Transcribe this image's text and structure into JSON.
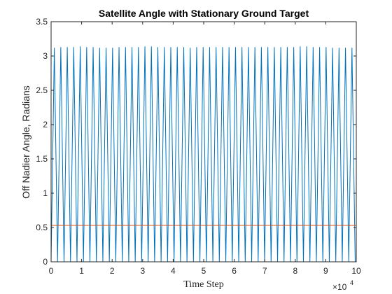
{
  "chart_data": {
    "type": "line",
    "title": "Satellite Angle with Stationary Ground Target",
    "xlabel": "Time Step",
    "ylabel": "Off Nadier Angle, Radians",
    "xlim": [
      0,
      100000
    ],
    "ylim": [
      0,
      3.5
    ],
    "x_ticks": [
      0,
      10000,
      20000,
      30000,
      40000,
      50000,
      60000,
      70000,
      80000,
      90000,
      100000
    ],
    "x_tick_labels": [
      "0",
      "1",
      "2",
      "3",
      "4",
      "5",
      "6",
      "7",
      "8",
      "9",
      "10"
    ],
    "x_exponent": {
      "base": "×10",
      "power": "4"
    },
    "y_ticks": [
      0,
      0.5,
      1,
      1.5,
      2,
      2.5,
      3,
      3.5
    ],
    "y_tick_labels": [
      "0",
      "0.5",
      "1",
      "1.5",
      "2",
      "2.5",
      "3",
      "3.5"
    ],
    "grid": false,
    "series": [
      {
        "color": "#0072BD",
        "pattern": "triangle-wave",
        "period": 2120,
        "phase_start": 1060,
        "min": 0,
        "peak_values": [
          3.12,
          3.13,
          3.13,
          3.13,
          3.14,
          3.13,
          3.13,
          3.12,
          3.12,
          3.12,
          3.13,
          3.13,
          3.13,
          3.13,
          3.14,
          3.14,
          3.13,
          3.13,
          3.13,
          3.13,
          3.13,
          3.12,
          3.13,
          3.13,
          3.13,
          3.13,
          3.13,
          3.13,
          3.13,
          3.13,
          3.13,
          3.13,
          3.13,
          3.13,
          3.13,
          3.13,
          3.13,
          3.13,
          3.14,
          3.14,
          3.13,
          3.13,
          3.13,
          3.12,
          3.12,
          3.12,
          3.12,
          3.13
        ]
      },
      {
        "color": "#D95319",
        "x": [
          0,
          100000
        ],
        "y": [
          0.53,
          0.53
        ]
      }
    ]
  }
}
